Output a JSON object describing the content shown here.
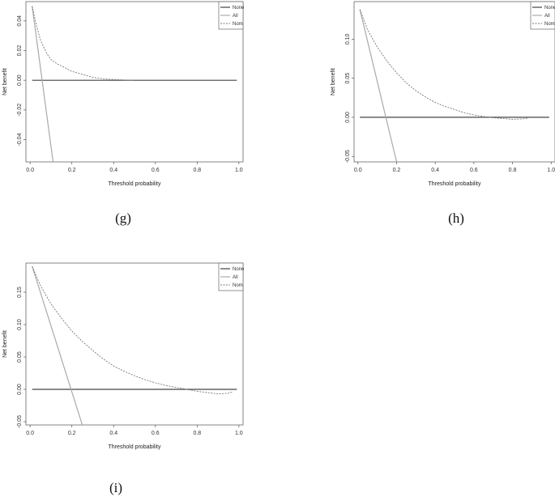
{
  "chart_data": [
    {
      "type": "line",
      "caption": "(g)",
      "xlabel": "Threshold probability",
      "ylabel": "Net benefit",
      "xlim": [
        -0.02,
        1.02
      ],
      "ylim": [
        -0.055,
        0.053
      ],
      "xticks": [
        "0.0",
        "0.2",
        "0.4",
        "0.6",
        "0.8",
        "1.0"
      ],
      "yticks": [
        "-0.04",
        "-0.02",
        "0.00",
        "0.02",
        "0.04"
      ],
      "ytick_values": [
        -0.04,
        -0.02,
        0.0,
        0.02,
        0.04
      ],
      "legend": {
        "position": "top-right",
        "entries": [
          "None",
          "All",
          "Nom"
        ]
      },
      "series": [
        {
          "name": "None",
          "style": "solid-dark",
          "x": [
            0.01,
            0.99
          ],
          "y": [
            0.0,
            0.0
          ]
        },
        {
          "name": "All",
          "style": "solid-grey",
          "x": [
            0.01,
            0.11
          ],
          "y": [
            0.05,
            -0.055
          ]
        },
        {
          "name": "Nom",
          "style": "dashed",
          "x": [
            0.01,
            0.03,
            0.05,
            0.08,
            0.1,
            0.13,
            0.16,
            0.2,
            0.25,
            0.3,
            0.35,
            0.4,
            0.45,
            0.5
          ],
          "y": [
            0.05,
            0.037,
            0.027,
            0.018,
            0.014,
            0.011,
            0.009,
            0.006,
            0.004,
            0.002,
            0.001,
            0.0005,
            0.0002,
            0.0
          ]
        }
      ]
    },
    {
      "type": "line",
      "caption": "(h)",
      "xlabel": "Threshold probability",
      "ylabel": "Net benefit",
      "xlim": [
        -0.02,
        1.02
      ],
      "ylim": [
        -0.057,
        0.148
      ],
      "xticks": [
        "0.0",
        "0.2",
        "0.4",
        "0.6",
        "0.8",
        "1.0"
      ],
      "yticks": [
        "-0.05",
        "0.00",
        "0.05",
        "0.10"
      ],
      "ytick_values": [
        -0.05,
        0.0,
        0.05,
        0.1
      ],
      "legend": {
        "position": "top-right",
        "entries": [
          "None",
          "All",
          "Nom"
        ]
      },
      "series": [
        {
          "name": "None",
          "style": "solid-dark",
          "x": [
            0.01,
            0.99
          ],
          "y": [
            0.0,
            0.0
          ]
        },
        {
          "name": "All",
          "style": "solid-grey",
          "x": [
            0.01,
            0.2
          ],
          "y": [
            0.138,
            -0.057
          ]
        },
        {
          "name": "Nom",
          "style": "dashed",
          "x": [
            0.01,
            0.05,
            0.1,
            0.15,
            0.2,
            0.25,
            0.3,
            0.35,
            0.4,
            0.45,
            0.5,
            0.55,
            0.6,
            0.65,
            0.7,
            0.75,
            0.8,
            0.85,
            0.88
          ],
          "y": [
            0.138,
            0.112,
            0.09,
            0.072,
            0.057,
            0.044,
            0.034,
            0.026,
            0.019,
            0.014,
            0.01,
            0.006,
            0.003,
            0.001,
            -0.0005,
            -0.0015,
            -0.0025,
            -0.002,
            -0.001
          ]
        }
      ]
    },
    {
      "type": "line",
      "caption": "(i)",
      "xlabel": "Threshold probability",
      "ylabel": "Net benefit",
      "xlim": [
        -0.02,
        1.02
      ],
      "ylim": [
        -0.055,
        0.195
      ],
      "xticks": [
        "0.0",
        "0.2",
        "0.4",
        "0.6",
        "0.8",
        "1.0"
      ],
      "yticks": [
        "-0.05",
        "0.00",
        "0.05",
        "0.10",
        "0.15"
      ],
      "ytick_values": [
        -0.05,
        0.0,
        0.05,
        0.1,
        0.15
      ],
      "legend": {
        "position": "top-right",
        "entries": [
          "None",
          "All",
          "Nom"
        ]
      },
      "series": [
        {
          "name": "None",
          "style": "solid-dark",
          "x": [
            0.01,
            0.99
          ],
          "y": [
            0.0,
            0.0
          ]
        },
        {
          "name": "All",
          "style": "solid-grey",
          "x": [
            0.01,
            0.25
          ],
          "y": [
            0.19,
            -0.055
          ]
        },
        {
          "name": "Nom",
          "style": "dashed",
          "x": [
            0.01,
            0.05,
            0.1,
            0.15,
            0.2,
            0.25,
            0.3,
            0.35,
            0.4,
            0.45,
            0.5,
            0.55,
            0.6,
            0.65,
            0.7,
            0.75,
            0.8,
            0.85,
            0.9,
            0.95,
            0.97
          ],
          "y": [
            0.19,
            0.16,
            0.132,
            0.11,
            0.09,
            0.074,
            0.06,
            0.047,
            0.036,
            0.028,
            0.021,
            0.015,
            0.01,
            0.006,
            0.003,
            0.0,
            -0.003,
            -0.005,
            -0.007,
            -0.006,
            -0.004
          ]
        }
      ]
    }
  ]
}
